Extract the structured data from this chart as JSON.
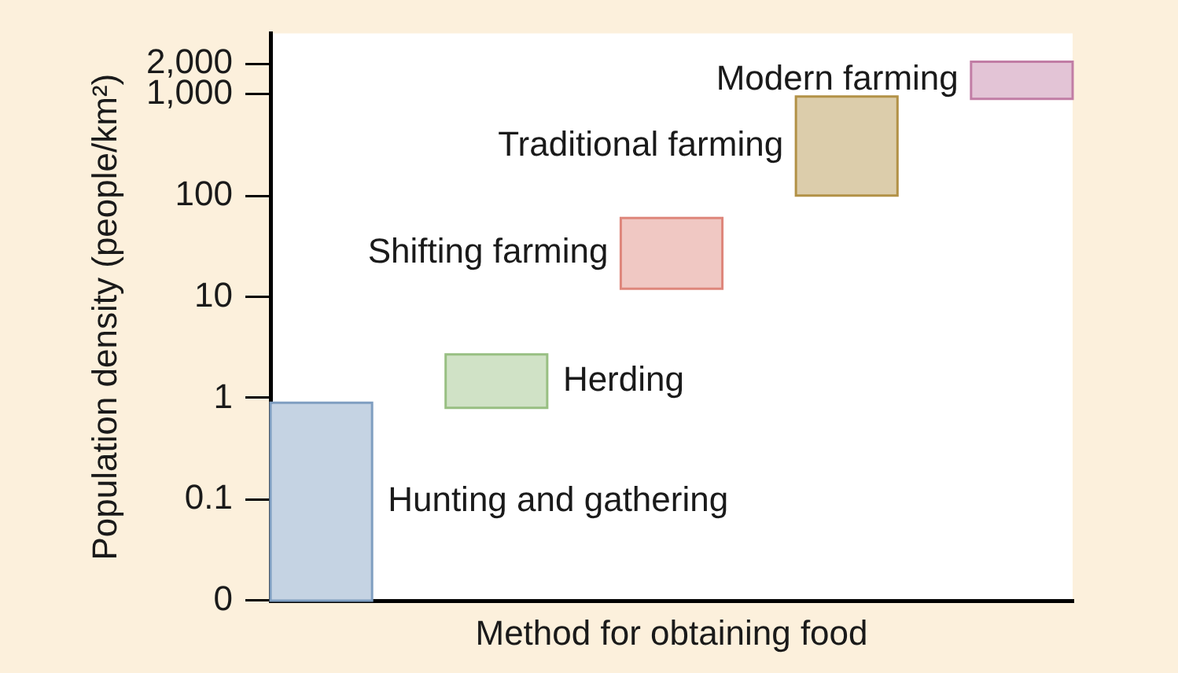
{
  "chart_data": {
    "type": "bar",
    "xlabel": "Method for obtaining food",
    "ylabel": "Population density (people/km²)",
    "categories": [
      null,
      null,
      null,
      null,
      null
    ],
    "series": [
      {
        "name": "Hunting and gathering",
        "color": "#c5d3e3",
        "values": [
          0.89,
          null,
          null,
          null,
          null
        ],
        "base": [
          0.01,
          null,
          null,
          null,
          null
        ]
      },
      {
        "name": "Herding",
        "color": "#d0e2c6",
        "values": [
          null,
          1.9,
          null,
          null,
          null
        ],
        "base": [
          null,
          0.8,
          null,
          null,
          null
        ]
      },
      {
        "name": "Shifting farming",
        "color": "#f0c8c3",
        "values": [
          null,
          null,
          48,
          null,
          null
        ],
        "base": [
          null,
          null,
          12,
          null,
          null
        ]
      },
      {
        "name": "Traditional farming",
        "color": "#dccdab",
        "values": [
          null,
          null,
          null,
          850,
          null
        ],
        "base": [
          null,
          null,
          null,
          100,
          null
        ]
      },
      {
        "name": "Modern farming",
        "color": "#e3c4d6",
        "values": [
          null,
          null,
          null,
          null,
          1200
        ],
        "base": [
          null,
          null,
          null,
          null,
          900
        ]
      }
    ],
    "log": true,
    "ylim": [
      0.01,
      4000
    ],
    "yticks": [
      {
        "value": 0.01,
        "label": "0"
      },
      0.1,
      1,
      10,
      100,
      {
        "value": 1000,
        "label": "1,000"
      },
      {
        "value": 2000,
        "label": "2,000"
      }
    ],
    "grid": false
  }
}
